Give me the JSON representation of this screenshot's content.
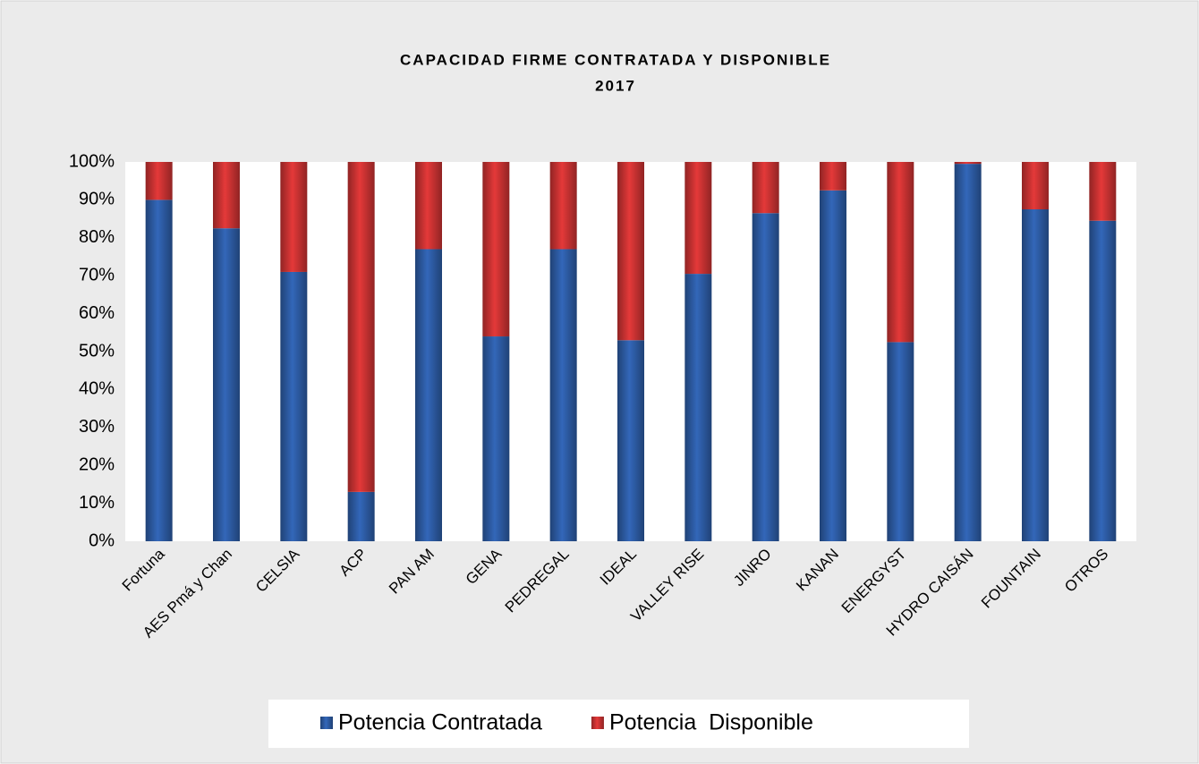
{
  "chart_data": {
    "type": "stacked_bar",
    "title_lines": [
      "CAPACIDAD FIRME CONTRATADA Y DISPONIBLE",
      "2017"
    ],
    "categories": [
      "Fortuna",
      "AES Pmá y Chan",
      "CELSIA",
      "ACP",
      "PAN AM",
      "GENA",
      "PEDREGAL",
      "IDEAL",
      "VALLEY RISE",
      "JINRO",
      "KANAN",
      "ENERGYST",
      "HYDRO CAISÁN",
      "FOUNTAIN",
      "OTROS"
    ],
    "series": [
      {
        "name": "Potencia Contratada",
        "color": "#2e5ea8",
        "values": [
          90,
          82.5,
          71,
          13,
          77,
          54,
          77,
          53,
          70.5,
          86.5,
          92.5,
          52.5,
          99.5,
          87.5,
          84.5
        ]
      },
      {
        "name": "Potencia  Disponible",
        "color": "#cf3434",
        "values": [
          10,
          17.5,
          29,
          87,
          23,
          46,
          23,
          47,
          29.5,
          13.5,
          7.5,
          47.5,
          0.5,
          12.5,
          15.5
        ]
      }
    ],
    "ylim": [
      0,
      100
    ],
    "yticks": [
      {
        "value": 0,
        "label": "0%"
      },
      {
        "value": 10,
        "label": "10%"
      },
      {
        "value": 20,
        "label": "20%"
      },
      {
        "value": 30,
        "label": "30%"
      },
      {
        "value": 40,
        "label": "40%"
      },
      {
        "value": 50,
        "label": "50%"
      },
      {
        "value": 60,
        "label": "60%"
      },
      {
        "value": 70,
        "label": "70%"
      },
      {
        "value": 80,
        "label": "80%"
      },
      {
        "value": 90,
        "label": "90%"
      },
      {
        "value": 100,
        "label": "100%"
      }
    ],
    "grid": false,
    "legend": "bottom"
  }
}
